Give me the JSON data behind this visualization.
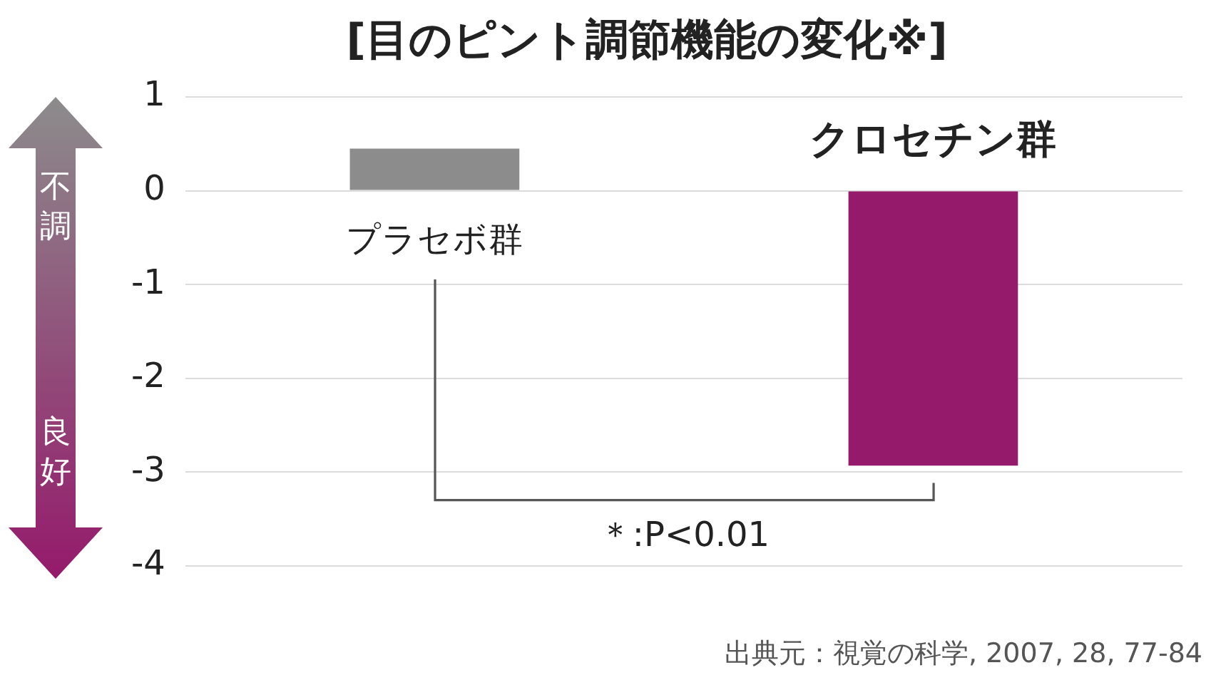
{
  "chart_data": {
    "type": "bar",
    "title": "[目のピント調節機能の変化※]",
    "categories": [
      "プラセボ群",
      "クロセチン群"
    ],
    "values": [
      0.45,
      -2.93
    ],
    "colors": [
      "#8c8c8c",
      "#951a6b"
    ],
    "ylim": [
      -4,
      1
    ],
    "yticks": [
      1,
      0,
      -1,
      -2,
      -3,
      -4
    ],
    "grid": "y",
    "legend": false,
    "tick_labels": "y",
    "annotations": [
      "不調",
      "良好",
      "＊:P<0.01",
      "出典元：視覚の科学, 2007, 28, 77-84"
    ]
  }
}
